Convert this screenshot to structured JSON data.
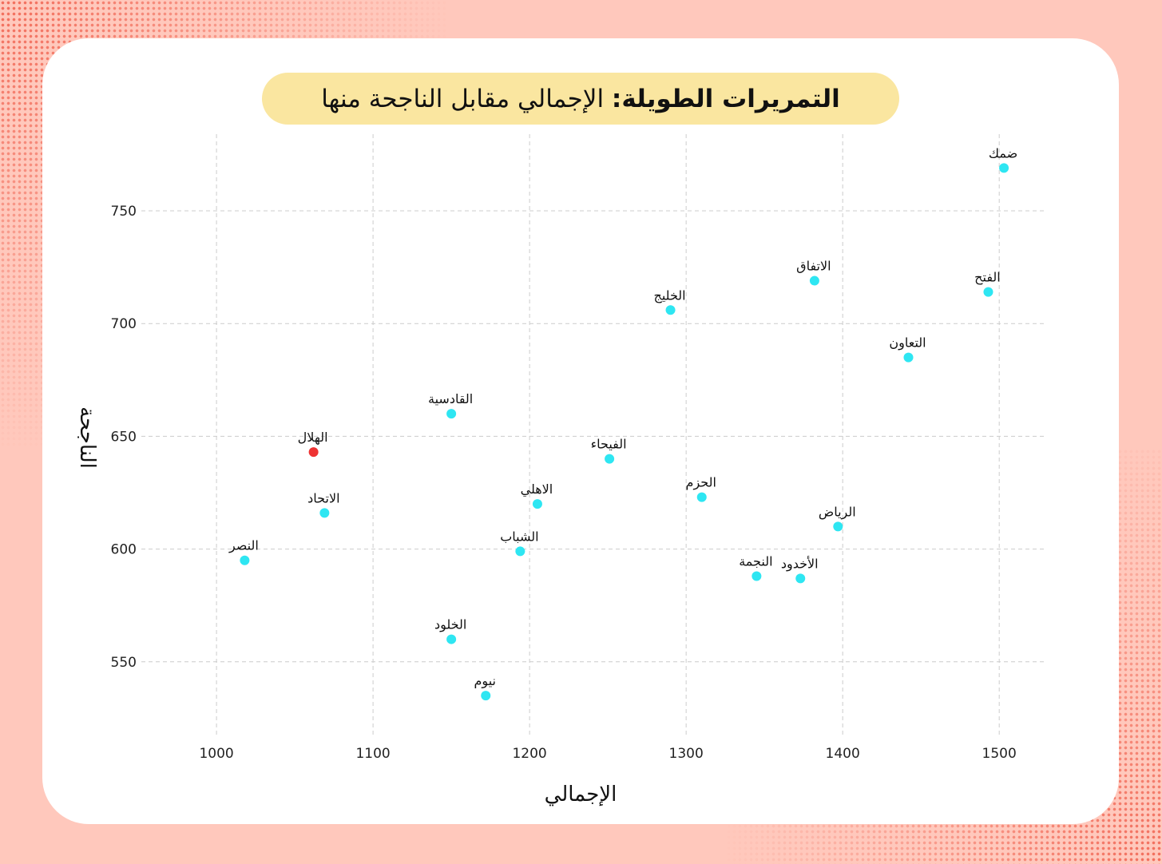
{
  "title": {
    "main": "التمريرات الطويلة:",
    "rest": "الإجمالي مقابل الناجحة منها"
  },
  "colors": {
    "background": "#ffc8bc",
    "card": "#ffffff",
    "title_pill": "#fae6a0",
    "point": "#2ee6f2",
    "highlight": "#ee3333",
    "grid": "#cccccc"
  },
  "chart_data": {
    "type": "scatter",
    "xlabel": "الإجمالي",
    "ylabel": "الناجحة",
    "xlim": [
      952,
      1530
    ],
    "ylim": [
      517,
      784
    ],
    "x_ticks": [
      1000,
      1100,
      1200,
      1300,
      1400,
      1500
    ],
    "y_ticks": [
      550,
      600,
      650,
      700,
      750
    ],
    "grid": true,
    "points": [
      {
        "label": "ضمك",
        "x": 1503,
        "y": 769,
        "highlight": false
      },
      {
        "label": "الاتفاق",
        "x": 1382,
        "y": 719,
        "highlight": false
      },
      {
        "label": "الفتح",
        "x": 1493,
        "y": 714,
        "highlight": false
      },
      {
        "label": "الخليج",
        "x": 1290,
        "y": 706,
        "highlight": false
      },
      {
        "label": "التعاون",
        "x": 1442,
        "y": 685,
        "highlight": false
      },
      {
        "label": "القادسية",
        "x": 1150,
        "y": 660,
        "highlight": false
      },
      {
        "label": "الهلال",
        "x": 1062,
        "y": 643,
        "highlight": true
      },
      {
        "label": "الفيحاء",
        "x": 1251,
        "y": 640,
        "highlight": false
      },
      {
        "label": "الحزم",
        "x": 1310,
        "y": 623,
        "highlight": false
      },
      {
        "label": "الاهلي",
        "x": 1205,
        "y": 620,
        "highlight": false
      },
      {
        "label": "الاتحاد",
        "x": 1069,
        "y": 616,
        "highlight": false
      },
      {
        "label": "الرياض",
        "x": 1397,
        "y": 610,
        "highlight": false
      },
      {
        "label": "الشباب",
        "x": 1194,
        "y": 599,
        "highlight": false
      },
      {
        "label": "النصر",
        "x": 1018,
        "y": 595,
        "highlight": false
      },
      {
        "label": "النجمة",
        "x": 1345,
        "y": 588,
        "highlight": false
      },
      {
        "label": "الأخدود",
        "x": 1373,
        "y": 587,
        "highlight": false
      },
      {
        "label": "الخلود",
        "x": 1150,
        "y": 560,
        "highlight": false
      },
      {
        "label": "نيوم",
        "x": 1172,
        "y": 535,
        "highlight": false
      }
    ]
  }
}
